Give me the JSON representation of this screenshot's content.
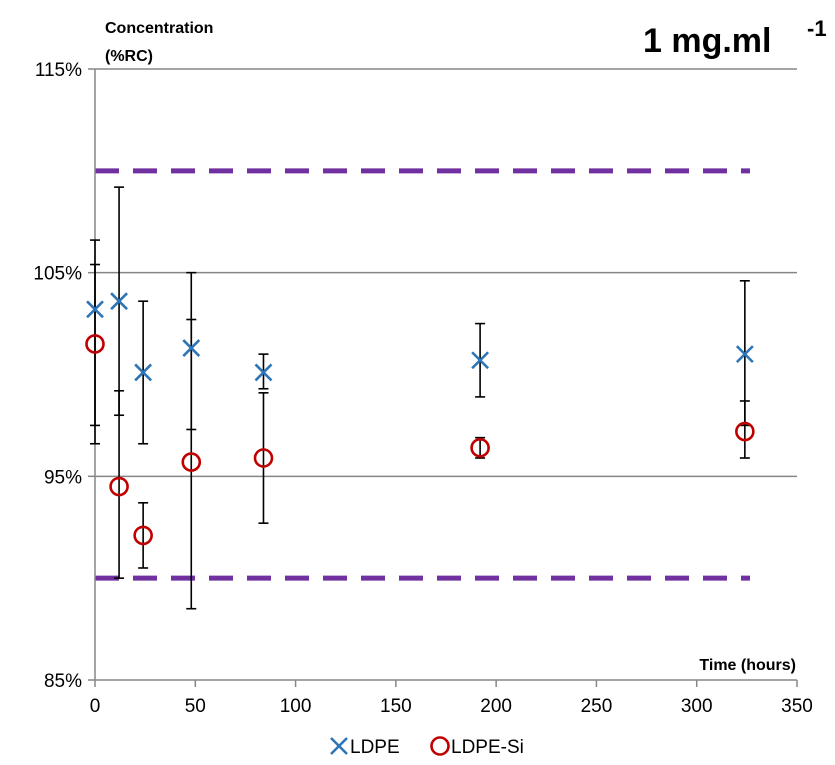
{
  "chart_data": {
    "type": "scatter",
    "title": "1 mg.ml",
    "title_superscript": "-1",
    "ylabel_line1": "Concentration",
    "ylabel_line2": "(%RC)",
    "xlabel": "Time (hours)",
    "xlim": [
      0,
      350
    ],
    "ylim": [
      85,
      115
    ],
    "x_ticks": [
      0,
      50,
      100,
      150,
      200,
      250,
      300,
      350
    ],
    "y_ticks": [
      85,
      95,
      105,
      115
    ],
    "y_tick_labels": [
      "85%",
      "95%",
      "105%",
      "115%"
    ],
    "gridlines_y": [
      95,
      105,
      115
    ],
    "reference_lines": [
      {
        "y": 110,
        "color": "#7030a0",
        "style": "dashed"
      },
      {
        "y": 90,
        "color": "#7030a0",
        "style": "dashed"
      }
    ],
    "legend_position": "bottom",
    "series": [
      {
        "name": "LDPE",
        "marker": "x",
        "color": "#2e75b6",
        "points": [
          {
            "x": 0,
            "y": 103.2,
            "err_low": 97.5,
            "err_high": 106.6
          },
          {
            "x": 12,
            "y": 103.6,
            "err_low": 98.0,
            "err_high": 109.2
          },
          {
            "x": 24,
            "y": 100.1,
            "err_low": 96.6,
            "err_high": 103.6
          },
          {
            "x": 48,
            "y": 101.3,
            "err_low": 97.3,
            "err_high": 105.0
          },
          {
            "x": 84,
            "y": 100.1,
            "err_low": 99.3,
            "err_high": 101.0
          },
          {
            "x": 192,
            "y": 100.7,
            "err_low": 98.9,
            "err_high": 102.5
          },
          {
            "x": 324,
            "y": 101.0,
            "err_low": 97.5,
            "err_high": 104.6
          }
        ]
      },
      {
        "name": "LDPE-Si",
        "marker": "circle",
        "color": "#c00000",
        "points": [
          {
            "x": 0,
            "y": 101.5,
            "err_low": 96.6,
            "err_high": 105.4
          },
          {
            "x": 12,
            "y": 94.5,
            "err_low": 90.0,
            "err_high": 99.2
          },
          {
            "x": 24,
            "y": 92.1,
            "err_low": 90.5,
            "err_high": 93.7
          },
          {
            "x": 48,
            "y": 95.7,
            "err_low": 88.5,
            "err_high": 102.7
          },
          {
            "x": 84,
            "y": 95.9,
            "err_low": 92.7,
            "err_high": 99.1
          },
          {
            "x": 192,
            "y": 96.4,
            "err_low": 95.9,
            "err_high": 96.9
          },
          {
            "x": 324,
            "y": 97.2,
            "err_low": 95.9,
            "err_high": 98.7
          }
        ]
      }
    ]
  }
}
